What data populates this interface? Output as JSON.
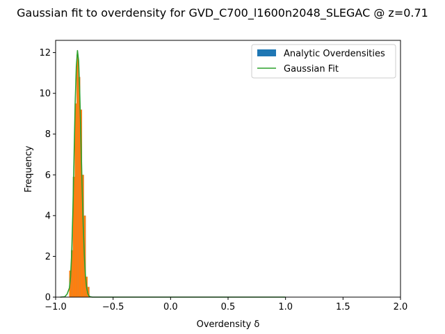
{
  "chart_data": {
    "type": "bar",
    "title": "Gaussian fit to overdensity for GVD_C700_l1600n2048_SLEGAC @ z=0.71",
    "xlabel": "Overdensity δ",
    "ylabel": "Frequency",
    "xlim": [
      -1.0,
      2.0
    ],
    "ylim": [
      0,
      12.6
    ],
    "xticks": [
      "−1.0",
      "−0.5",
      "0.0",
      "0.5",
      "1.0",
      "1.5",
      "2.0"
    ],
    "yticks": [
      "0",
      "2",
      "4",
      "6",
      "8",
      "10",
      "12"
    ],
    "legend": {
      "placement": "upper-right"
    },
    "series": [
      {
        "name": "Analytic Overdensities",
        "kind": "histogram",
        "color": "#1f77b4",
        "bin_edges": [
          -0.882,
          -0.866,
          -0.85,
          -0.834,
          -0.818,
          -0.802,
          -0.786,
          -0.77,
          -0.754,
          -0.738,
          -0.722,
          -0.706
        ],
        "values": [
          1.3,
          2.3,
          5.9,
          9.5,
          11.9,
          10.8,
          9.2,
          6.0,
          4.0,
          1.0,
          0.5
        ]
      },
      {
        "name": "",
        "kind": "histogram",
        "color": "#ff7f0e",
        "bin_edges": [
          -0.882,
          -0.866,
          -0.85,
          -0.834,
          -0.818,
          -0.802,
          -0.786,
          -0.77,
          -0.754,
          -0.738,
          -0.722,
          -0.706
        ],
        "values": [
          1.3,
          2.3,
          5.9,
          9.5,
          11.9,
          10.8,
          9.2,
          6.0,
          4.0,
          1.0,
          0.5
        ]
      },
      {
        "name": "Gaussian Fit",
        "kind": "line",
        "color": "#2ca02c",
        "x": [
          -0.96,
          -0.92,
          -0.9,
          -0.88,
          -0.87,
          -0.86,
          -0.85,
          -0.84,
          -0.83,
          -0.82,
          -0.81,
          -0.8,
          -0.79,
          -0.78,
          -0.77,
          -0.76,
          -0.75,
          -0.74,
          -0.73,
          -0.72,
          -0.71,
          -0.7,
          -0.68,
          -0.65,
          -0.5,
          0.0,
          0.5,
          1.0
        ],
        "y": [
          0.0,
          0.02,
          0.15,
          0.45,
          1.0,
          2.2,
          4.2,
          6.8,
          9.5,
          11.3,
          12.1,
          11.6,
          10.0,
          7.8,
          5.5,
          3.5,
          2.0,
          1.0,
          0.45,
          0.18,
          0.06,
          0.02,
          0.0,
          0.0,
          0.0,
          0.0,
          0.0,
          0.0
        ]
      }
    ]
  }
}
